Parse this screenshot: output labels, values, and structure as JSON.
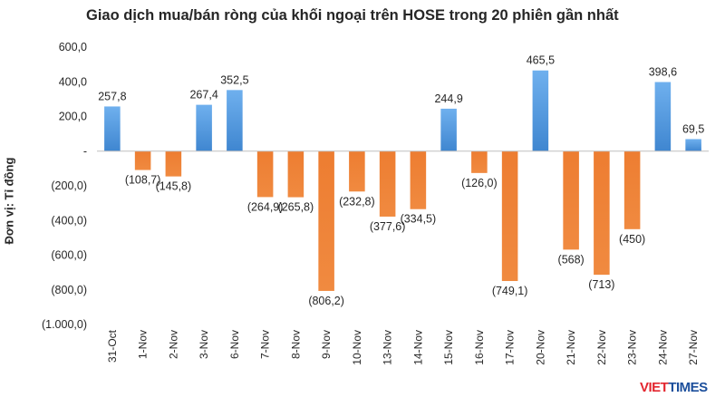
{
  "chart_data": {
    "type": "bar",
    "title": "Giao dịch mua/bán ròng của khối ngoại trên HOSE trong 20 phiên gần nhất",
    "ylabel": "Đơn vị: Tỉ đồng",
    "xlabel": "",
    "ylim": [
      -1000,
      600
    ],
    "yticks": [
      600,
      400,
      200,
      0,
      -200,
      -400,
      -600,
      -800,
      -1000
    ],
    "ytick_labels": [
      "600,0",
      "400,0",
      "200,0",
      "-",
      "(200,0)",
      "(400,0)",
      "(600,0)",
      "(800,0)",
      "(1.000,0)"
    ],
    "categories": [
      "31-Oct",
      "1-Nov",
      "2-Nov",
      "3-Nov",
      "6-Nov",
      "7-Nov",
      "8-Nov",
      "9-Nov",
      "10-Nov",
      "13-Nov",
      "14-Nov",
      "15-Nov",
      "16-Nov",
      "17-Nov",
      "20-Nov",
      "21-Nov",
      "22-Nov",
      "23-Nov",
      "24-Nov",
      "27-Nov"
    ],
    "values": [
      257.8,
      -108.7,
      -145.8,
      267.4,
      352.5,
      -264.9,
      -265.8,
      -806.2,
      -232.8,
      -377.6,
      -334.5,
      244.9,
      -126.0,
      -749.1,
      465.5,
      -568,
      -713,
      -450,
      398.6,
      69.5
    ],
    "data_labels": [
      "257,8",
      "(108,7)",
      "(145,8)",
      "267,4",
      "352,5",
      "(264,9)",
      "(265,8)",
      "(806,2)",
      "(232,8)",
      "(377,6)",
      "(334,5)",
      "244,9",
      "(126,0)",
      "(749,1)",
      "465,5",
      "(568)",
      "(713)",
      "(450)",
      "398,6",
      "69,5"
    ],
    "colors": {
      "positive": "#4a90d9",
      "negative": "#ed7d31"
    },
    "grid": false,
    "legend": "none"
  },
  "watermark": {
    "part1": "VIET",
    "part2": "TIMES"
  }
}
